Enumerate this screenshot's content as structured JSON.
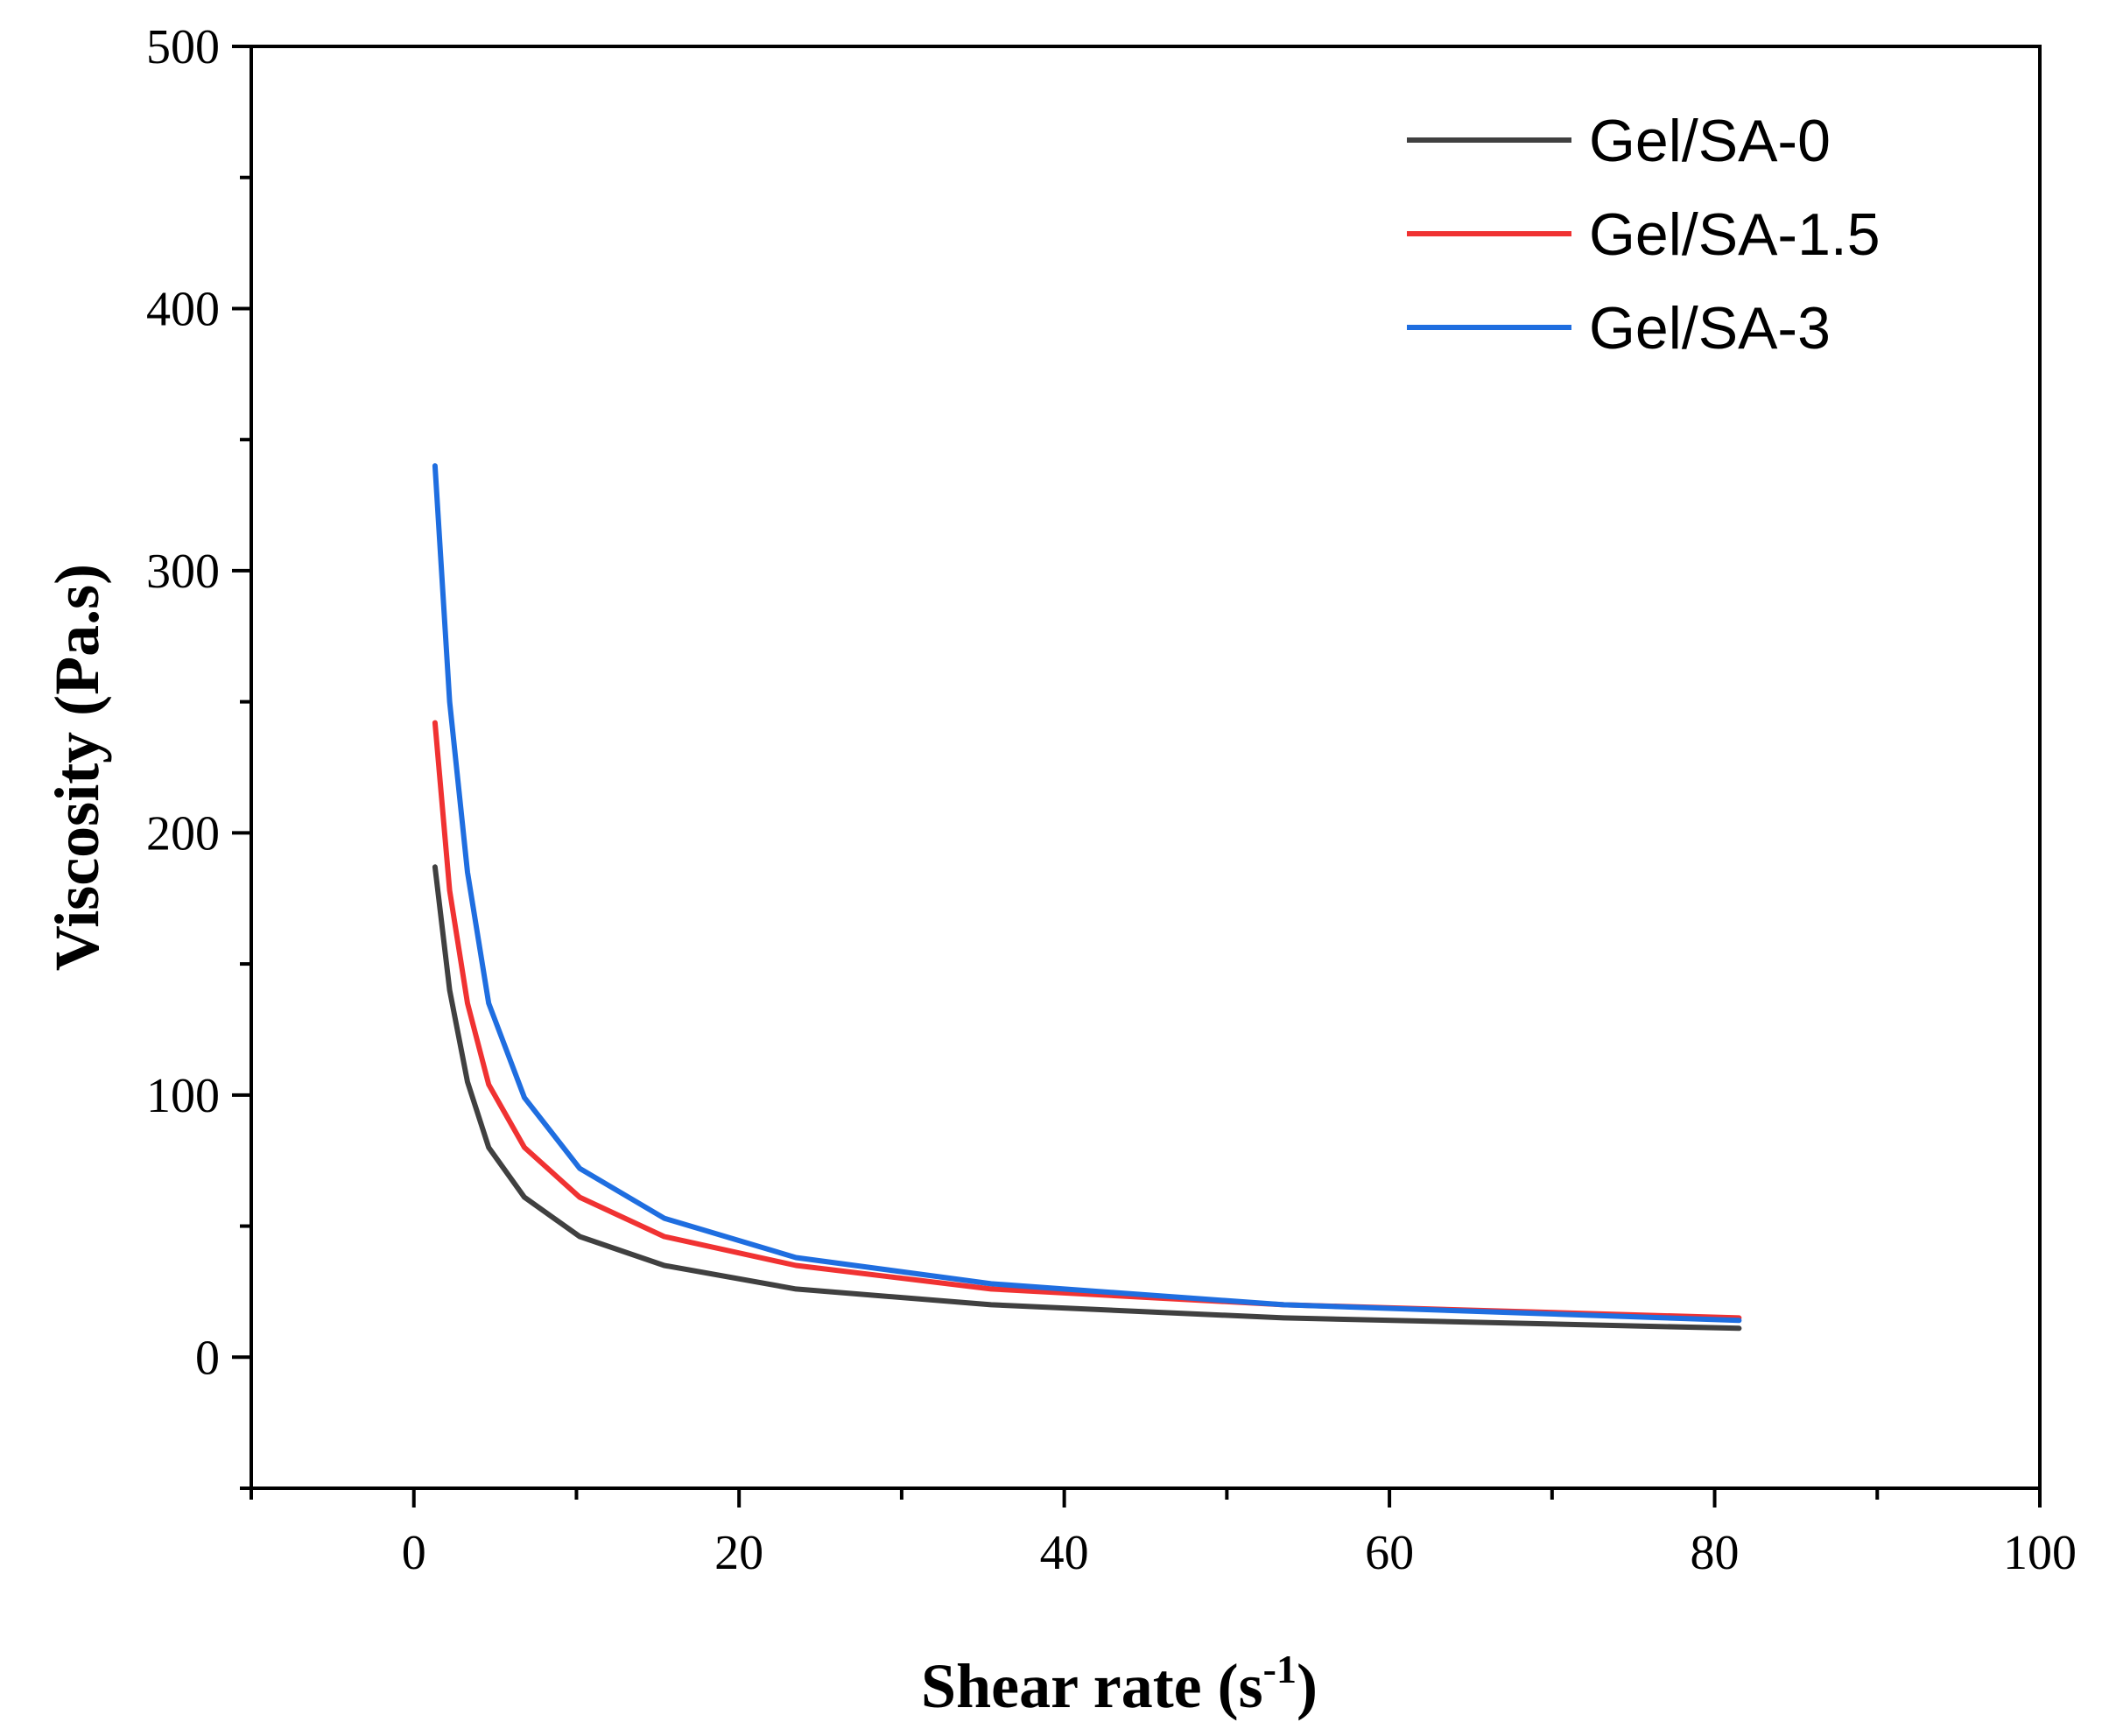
{
  "chart_data": {
    "type": "line",
    "title": "",
    "xlabel": "Shear rate (s",
    "xlabel_sup": "-1",
    "xlabel_close": ")",
    "ylabel": "Viscosity (Pa.s)",
    "xlim": [
      -10,
      100
    ],
    "ylim": [
      -50,
      500
    ],
    "xticks": [
      0,
      20,
      40,
      60,
      80,
      100
    ],
    "yticks": [
      0,
      100,
      200,
      300,
      400,
      500
    ],
    "legend_position": "top-right",
    "grid": false,
    "x": [
      1.3,
      2.2,
      3.3,
      4.6,
      6.8,
      10.2,
      15.4,
      23.5,
      35.5,
      53.5,
      81.5
    ],
    "series": [
      {
        "name": "Gel/SA-0",
        "color": "#404040",
        "values": [
          187,
          140,
          105,
          80,
          61,
          46,
          35,
          26,
          20,
          15,
          11
        ]
      },
      {
        "name": "Gel/SA-1.5",
        "color": "#f03232",
        "values": [
          242,
          178,
          135,
          104,
          80,
          61,
          46,
          35,
          26,
          20,
          15
        ]
      },
      {
        "name": "Gel/SA-3",
        "color": "#1f6ee0",
        "values": [
          340,
          250,
          185,
          135,
          99,
          72,
          53,
          38,
          28,
          20,
          14
        ]
      }
    ]
  }
}
